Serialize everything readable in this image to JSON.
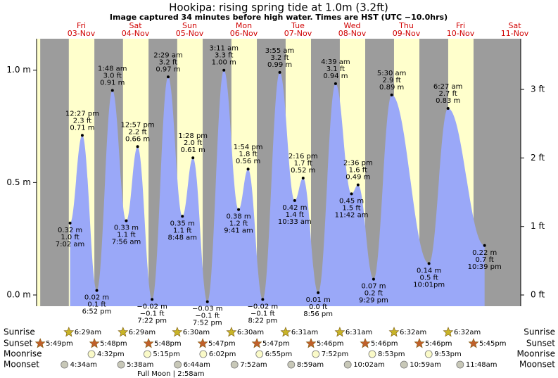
{
  "chart_data": {
    "type": "area",
    "title": "Hookipa: rising  spring tide at 1.0m (3.2ft)",
    "subtitle": "Image captured 34 minutes before high water. Times are HST (UTC −10.0hrs)",
    "color": "#9aa8f8",
    "days": [
      {
        "weekday": "Fri",
        "date": "03-Nov"
      },
      {
        "weekday": "Sat",
        "date": "04-Nov"
      },
      {
        "weekday": "Sun",
        "date": "05-Nov"
      },
      {
        "weekday": "Mon",
        "date": "06-Nov"
      },
      {
        "weekday": "Tue",
        "date": "07-Nov"
      },
      {
        "weekday": "Wed",
        "date": "08-Nov"
      },
      {
        "weekday": "Thu",
        "date": "09-Nov"
      },
      {
        "weekday": "Fri",
        "date": "10-Nov"
      },
      {
        "weekday": "Sat",
        "date": "11-Nov"
      }
    ],
    "x": [
      "7:02 am",
      "12:27 pm",
      "6:52 pm",
      "1:48 am",
      "7:56 am",
      "12:57 pm",
      "7:22 pm",
      "2:29 am",
      "8:48 am",
      "1:28 pm",
      "7:52 pm",
      "3:11 am",
      "9:41 am",
      "1:54 pm",
      "8:22 pm",
      "3:55 am",
      "10:33 am",
      "2:16 pm",
      "8:56 pm",
      "4:39 am",
      "11:42 am",
      "2:36 pm",
      "9:29 pm",
      "5:30 am",
      "10:01pm",
      "6:27 am",
      "10:39 pm"
    ],
    "values": [
      0.32,
      0.71,
      0.02,
      0.91,
      0.33,
      0.66,
      -0.02,
      0.97,
      0.35,
      0.61,
      -0.03,
      1.0,
      0.38,
      0.56,
      -0.02,
      0.99,
      0.42,
      0.52,
      0.01,
      0.94,
      0.45,
      0.49,
      0.07,
      0.89,
      0.14,
      0.83,
      0.22
    ],
    "value_labels": [
      "0.32 m",
      "0.71 m",
      "0.02 m",
      "0.91 m",
      "0.33 m",
      "0.66 m",
      "−0.02 m",
      "0.97 m",
      "0.35 m",
      "0.61 m",
      "−0.03 m",
      "1.00 m",
      "0.38 m",
      "0.56 m",
      "−0.02 m",
      "0.99 m",
      "0.42 m",
      "0.52 m",
      "0.01 m",
      "0.94 m",
      "0.45 m",
      "0.49 m",
      "0.07 m",
      "0.89 m",
      "0.14 m",
      "0.83 m",
      "0.22 m"
    ],
    "ft_labels": [
      "1.0 ft",
      "2.3 ft",
      "0.1 ft",
      "3.0 ft",
      "1.1 ft",
      "2.2 ft",
      "−0.1 ft",
      "3.2 ft",
      "1.1 ft",
      "2.0 ft",
      "−0.1 ft",
      "3.3 ft",
      "1.2 ft",
      "1.8 ft",
      "−0.1 ft",
      "3.2 ft",
      "1.4 ft",
      "1.7 ft",
      "0.0 ft",
      "3.1 ft",
      "1.5 ft",
      "1.6 ft",
      "0.2 ft",
      "2.9 ft",
      "0.5 ft",
      "2.7 ft",
      "0.7 ft"
    ],
    "ylim": [
      -0.05,
      1.14
    ],
    "yticks": [
      {
        "value": 0,
        "label": "0.0 m"
      },
      {
        "value": 0.5,
        "label": "0.5 m"
      },
      {
        "value": 1,
        "label": "1.0 m"
      }
    ],
    "y2lim": [
      -0.164,
      3.74
    ],
    "y2ticks": [
      {
        "value": 0,
        "label": "0 ft"
      },
      {
        "value": 1,
        "label": "1 ft"
      },
      {
        "value": 2,
        "label": "2 ft"
      },
      {
        "value": 3,
        "label": "3 ft"
      }
    ],
    "events": [
      {
        "name": "Sunrise",
        "color": "#c8b428",
        "times": [
          "6:29am",
          "6:29am",
          "6:30am",
          "6:30am",
          "6:31am",
          "6:31am",
          "6:32am",
          "6:32am"
        ]
      },
      {
        "name": "Sunset",
        "color": "#c0602a",
        "times": [
          "5:49pm",
          "5:48pm",
          "5:48pm",
          "5:47pm",
          "5:47pm",
          "5:46pm",
          "5:46pm",
          "5:46pm",
          "5:45pm"
        ]
      },
      {
        "name": "Moonrise",
        "color": "#fafac8",
        "times": [
          "4:32pm",
          "5:15pm",
          "6:02pm",
          "6:55pm",
          "7:52pm",
          "8:53pm",
          "9:53pm"
        ]
      },
      {
        "name": "Moonset",
        "color": "#c8c8b8",
        "times": [
          "4:34am",
          "5:38am",
          "6:44am",
          "7:52am",
          "8:59am",
          "10:02am",
          "10:59am",
          "11:48am"
        ]
      }
    ],
    "moon_phase": "Full Moon | 2:58am"
  }
}
